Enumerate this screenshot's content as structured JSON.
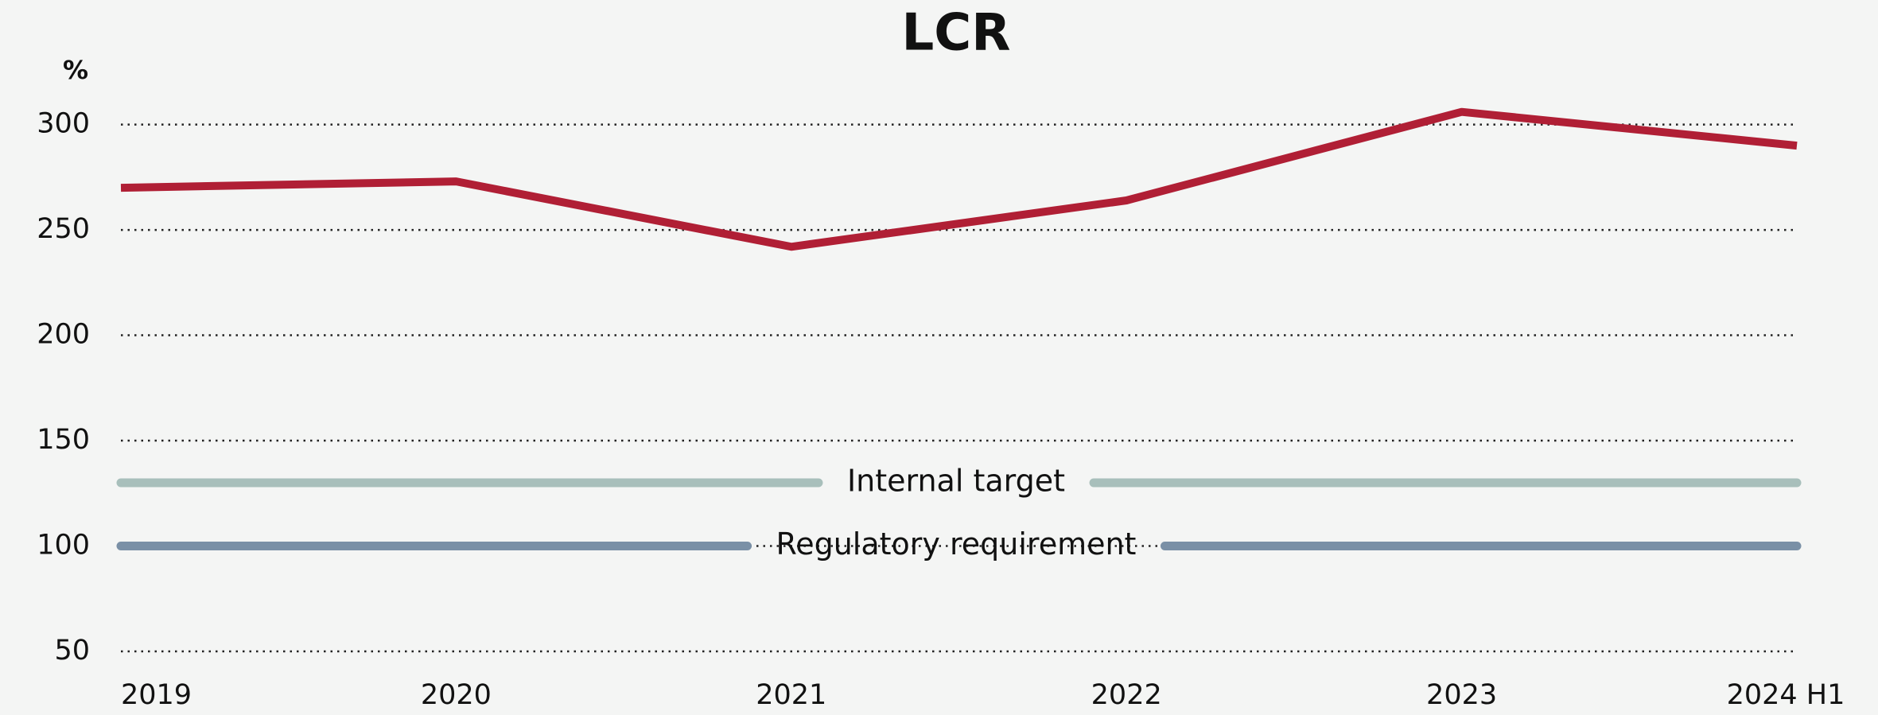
{
  "chart_data": {
    "type": "line",
    "title": "LCR",
    "y_label": "%",
    "categories": [
      "2019",
      "2020",
      "2021",
      "2022",
      "2023",
      "2024 H1"
    ],
    "series": [
      {
        "name": "LCR",
        "color": "#b01f35",
        "values": [
          270,
          273,
          242,
          264,
          306,
          290
        ]
      }
    ],
    "reference_lines": [
      {
        "label": "Internal target",
        "value": 130,
        "color": "#a8bfbb"
      },
      {
        "label": "Regulatory requirement",
        "value": 100,
        "color": "#7a90a6"
      }
    ],
    "ylim": [
      50,
      300
    ],
    "yticks": [
      50,
      100,
      150,
      200,
      250,
      300
    ],
    "grid": true
  }
}
